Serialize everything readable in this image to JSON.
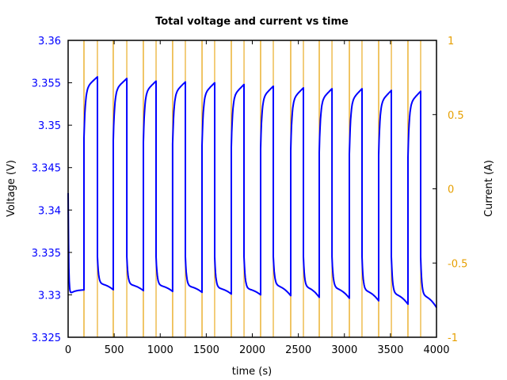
{
  "chart_data": {
    "type": "line",
    "title": "Total voltage and current vs time",
    "xlabel": "time (s)",
    "ylabel": "Voltage (V)",
    "y2label": "Current (A)",
    "xlim": [
      0,
      4000
    ],
    "ylim": [
      3.325,
      3.36
    ],
    "y2lim": [
      -1,
      1
    ],
    "xticks": [
      "0",
      "500",
      "1000",
      "1500",
      "2000",
      "2500",
      "3000",
      "3500",
      "4000"
    ],
    "yticks": [
      "3.325",
      "3.33",
      "3.335",
      "3.34",
      "3.345",
      "3.35",
      "3.355",
      "3.36"
    ],
    "y2ticks": [
      "-1",
      "-0.5",
      "0",
      "0.5",
      "1"
    ],
    "grid": false,
    "legend": null,
    "colors": {
      "voltage": "#0000ff",
      "current": "#e69f00",
      "axis": "#000000"
    },
    "current_transitions_s": [
      172,
      318,
      490,
      637,
      817,
      955,
      1135,
      1273,
      1454,
      1591,
      1772,
      1910,
      2090,
      2228,
      2417,
      2555,
      2727,
      2865,
      3054,
      3191,
      3372,
      3510,
      3690,
      3828
    ],
    "current_note": "Current switches between values outside the plotted [-1, 1] A range; only vertical transitions are visible",
    "series": [
      {
        "name": "Voltage (V)",
        "axis": "left",
        "initial": {
          "t": 0,
          "v": 3.342
        },
        "cycles": [
          {
            "charge_start": 172,
            "charge_end": 318,
            "v_jump": 3.3485,
            "v_peak": 3.3557,
            "v_rest_end": 3.3306
          },
          {
            "charge_start": 490,
            "charge_end": 637,
            "v_jump": 3.3482,
            "v_peak": 3.3555,
            "v_rest_end": 3.3305
          },
          {
            "charge_start": 817,
            "charge_end": 955,
            "v_jump": 3.348,
            "v_peak": 3.3552,
            "v_rest_end": 3.3304
          },
          {
            "charge_start": 1135,
            "charge_end": 1273,
            "v_jump": 3.3478,
            "v_peak": 3.3551,
            "v_rest_end": 3.3303
          },
          {
            "charge_start": 1454,
            "charge_end": 1591,
            "v_jump": 3.3476,
            "v_peak": 3.355,
            "v_rest_end": 3.3301
          },
          {
            "charge_start": 1772,
            "charge_end": 1910,
            "v_jump": 3.3474,
            "v_peak": 3.3548,
            "v_rest_end": 3.33
          },
          {
            "charge_start": 2090,
            "charge_end": 2228,
            "v_jump": 3.3472,
            "v_peak": 3.3546,
            "v_rest_end": 3.3299
          },
          {
            "charge_start": 2417,
            "charge_end": 2555,
            "v_jump": 3.347,
            "v_peak": 3.3544,
            "v_rest_end": 3.3297
          },
          {
            "charge_start": 2727,
            "charge_end": 2865,
            "v_jump": 3.3468,
            "v_peak": 3.3543,
            "v_rest_end": 3.3296
          },
          {
            "charge_start": 3054,
            "charge_end": 3191,
            "v_jump": 3.3466,
            "v_peak": 3.3543,
            "v_rest_end": 3.3293
          },
          {
            "charge_start": 3372,
            "charge_end": 3510,
            "v_jump": 3.3464,
            "v_peak": 3.3541,
            "v_rest_end": 3.3289
          },
          {
            "charge_start": 3690,
            "charge_end": 3828,
            "v_jump": 3.3462,
            "v_peak": 3.354,
            "v_rest_end": 3.3287
          }
        ],
        "final": {
          "t": 4000,
          "v": 3.3285
        },
        "first_rest": {
          "t_start": 0,
          "t_end": 172,
          "v_min": 3.33,
          "v_end": 3.3306
        }
      },
      {
        "name": "Current (A)",
        "axis": "right",
        "type": "square-wave transitions"
      }
    ]
  }
}
